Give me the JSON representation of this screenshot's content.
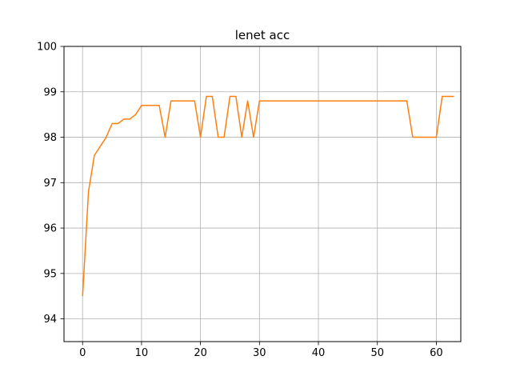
{
  "chart_data": {
    "type": "line",
    "title": "lenet acc",
    "xlabel": "",
    "ylabel": "",
    "xlim": [
      -3.15,
      64.15
    ],
    "ylim": [
      93.5,
      100
    ],
    "xticks": [
      0,
      10,
      20,
      30,
      40,
      50,
      60
    ],
    "yticks": [
      94,
      95,
      96,
      97,
      98,
      99,
      100
    ],
    "grid": true,
    "series": [
      {
        "color": "#ff7f0e",
        "x": [
          0,
          1,
          2,
          3,
          4,
          5,
          6,
          7,
          8,
          9,
          10,
          11,
          12,
          13,
          14,
          15,
          16,
          17,
          18,
          19,
          20,
          21,
          22,
          23,
          24,
          25,
          26,
          27,
          28,
          29,
          30,
          31,
          32,
          33,
          34,
          35,
          36,
          37,
          38,
          39,
          40,
          41,
          42,
          43,
          44,
          45,
          46,
          47,
          48,
          49,
          50,
          51,
          52,
          53,
          54,
          55,
          56,
          57,
          58,
          59,
          60,
          61,
          62,
          63
        ],
        "values": [
          94.5,
          96.8,
          97.6,
          97.8,
          98.0,
          98.3,
          98.3,
          98.4,
          98.4,
          98.5,
          98.7,
          98.7,
          98.7,
          98.7,
          98.0,
          98.8,
          98.8,
          98.8,
          98.8,
          98.8,
          98.0,
          98.9,
          98.9,
          98.0,
          98.0,
          98.9,
          98.9,
          98.0,
          98.8,
          98.0,
          98.8,
          98.8,
          98.8,
          98.8,
          98.8,
          98.8,
          98.8,
          98.8,
          98.8,
          98.8,
          98.8,
          98.8,
          98.8,
          98.8,
          98.8,
          98.8,
          98.8,
          98.8,
          98.8,
          98.8,
          98.8,
          98.8,
          98.8,
          98.8,
          98.8,
          98.8,
          98.0,
          98.0,
          98.0,
          98.0,
          98.0,
          98.9,
          98.9,
          98.9
        ]
      }
    ]
  }
}
